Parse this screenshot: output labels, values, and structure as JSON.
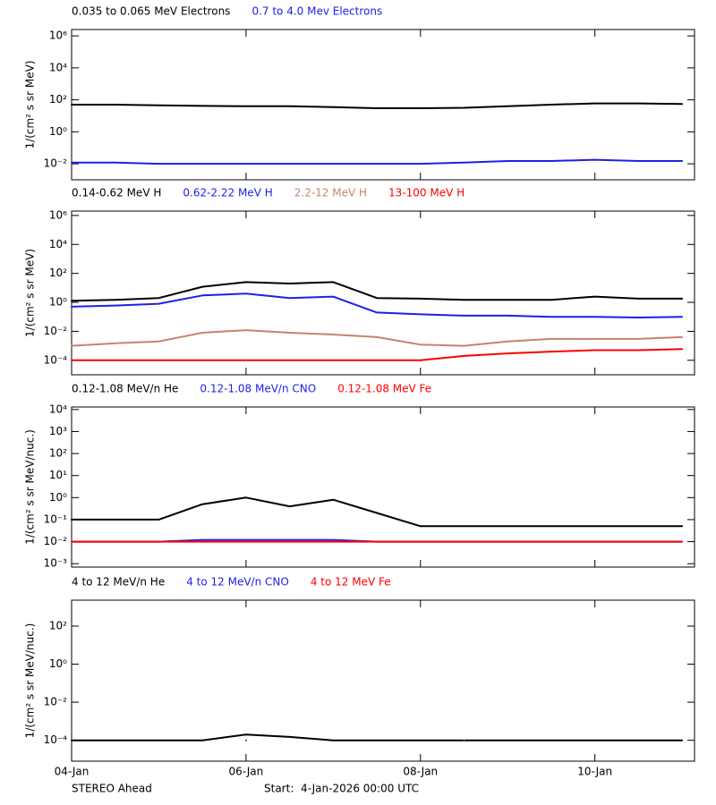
{
  "chart_data": [
    {
      "type": "line",
      "ylog": true,
      "ylabel": "1/(cm² s sr MeV)",
      "x": [
        "2026-01-04T00:00",
        "2026-01-04T12:00",
        "2026-01-05T00:00",
        "2026-01-05T12:00",
        "2026-01-06T00:00",
        "2026-01-06T12:00",
        "2026-01-07T00:00",
        "2026-01-07T12:00",
        "2026-01-08T00:00",
        "2026-01-08T12:00",
        "2026-01-09T00:00",
        "2026-01-09T12:00",
        "2026-01-10T00:00",
        "2026-01-10T12:00",
        "2026-01-11T00:00"
      ],
      "xlim": [
        "2026-01-04T00:00",
        "2026-01-11T03:25"
      ],
      "xticks": [
        "2026-01-04T00:00",
        "2026-01-06T00:00",
        "2026-01-08T00:00",
        "2026-01-10T00:00"
      ],
      "ylim": [
        0.001,
        2500000
      ],
      "yticks": [
        {
          "value": 0.01,
          "label": "10⁻²"
        },
        {
          "value": 1,
          "label": "10⁰"
        },
        {
          "value": 100,
          "label": "10²"
        },
        {
          "value": 10000,
          "label": "10⁴"
        },
        {
          "value": 1000000,
          "label": "10⁶"
        }
      ],
      "series": [
        {
          "name": "0.035 to 0.065 MeV Electrons",
          "color": "#000000",
          "values": [
            50,
            50,
            45,
            42,
            40,
            40,
            35,
            30,
            30,
            32,
            40,
            50,
            60,
            60,
            55
          ]
        },
        {
          "name": "0.7 to 4.0 Mev Electrons",
          "color": "#1f1fe6",
          "values": [
            0.012,
            0.012,
            0.01,
            0.01,
            0.01,
            0.01,
            0.01,
            0.01,
            0.01,
            0.012,
            0.015,
            0.015,
            0.018,
            0.015,
            0.015
          ]
        }
      ]
    },
    {
      "type": "line",
      "ylog": true,
      "ylabel": "1/(cm² s sr MeV)",
      "x": [
        "2026-01-04T00:00",
        "2026-01-04T12:00",
        "2026-01-05T00:00",
        "2026-01-05T12:00",
        "2026-01-06T00:00",
        "2026-01-06T12:00",
        "2026-01-07T00:00",
        "2026-01-07T12:00",
        "2026-01-08T00:00",
        "2026-01-08T12:00",
        "2026-01-09T00:00",
        "2026-01-09T12:00",
        "2026-01-10T00:00",
        "2026-01-10T12:00",
        "2026-01-11T00:00"
      ],
      "xlim": [
        "2026-01-04T00:00",
        "2026-01-11T03:25"
      ],
      "xticks": [
        "2026-01-04T00:00",
        "2026-01-06T00:00",
        "2026-01-08T00:00",
        "2026-01-10T00:00"
      ],
      "ylim": [
        1e-05,
        2000000
      ],
      "yticks": [
        {
          "value": 0.0001,
          "label": "10⁻⁴"
        },
        {
          "value": 0.01,
          "label": "10⁻²"
        },
        {
          "value": 1,
          "label": "10⁰"
        },
        {
          "value": 100,
          "label": "10²"
        },
        {
          "value": 10000,
          "label": "10⁴"
        },
        {
          "value": 1000000,
          "label": "10⁶"
        }
      ],
      "series": [
        {
          "name": "0.14-0.62 MeV H",
          "color": "#000000",
          "values": [
            1.3,
            1.5,
            2,
            12,
            25,
            20,
            25,
            2,
            1.8,
            1.5,
            1.5,
            1.5,
            2.5,
            1.8,
            1.8
          ]
        },
        {
          "name": "0.62-2.22 MeV H",
          "color": "#1f1fe6",
          "values": [
            0.5,
            0.6,
            0.8,
            3,
            4,
            2,
            2.5,
            0.2,
            0.15,
            0.12,
            0.12,
            0.1,
            0.1,
            0.09,
            0.1
          ]
        },
        {
          "name": "2.2-12 MeV H",
          "color": "#c48470",
          "values": [
            0.001,
            0.0015,
            0.002,
            0.008,
            0.012,
            0.008,
            0.006,
            0.004,
            0.0012,
            0.001,
            0.002,
            0.003,
            0.003,
            0.003,
            0.004
          ]
        },
        {
          "name": "13-100 MeV H",
          "color": "#ff0000",
          "values": [
            0.0001,
            0.0001,
            0.0001,
            0.0001,
            0.0001,
            0.0001,
            0.0001,
            0.0001,
            0.0001,
            0.0002,
            0.0003,
            0.0004,
            0.0005,
            0.0005,
            0.0006
          ]
        }
      ]
    },
    {
      "type": "line",
      "ylog": true,
      "ylabel": "1/(cm² s sr MeV/nuc.)",
      "x": [
        "2026-01-04T00:00",
        "2026-01-04T12:00",
        "2026-01-05T00:00",
        "2026-01-05T12:00",
        "2026-01-06T00:00",
        "2026-01-06T12:00",
        "2026-01-07T00:00",
        "2026-01-07T12:00",
        "2026-01-08T00:00",
        "2026-01-08T12:00",
        "2026-01-09T00:00",
        "2026-01-09T12:00",
        "2026-01-10T00:00",
        "2026-01-10T12:00",
        "2026-01-11T00:00"
      ],
      "xlim": [
        "2026-01-04T00:00",
        "2026-01-11T03:25"
      ],
      "xticks": [
        "2026-01-04T00:00",
        "2026-01-06T00:00",
        "2026-01-08T00:00",
        "2026-01-10T00:00"
      ],
      "ylim": [
        0.0007,
        13000
      ],
      "yticks": [
        {
          "value": 0.001,
          "label": "10⁻³"
        },
        {
          "value": 0.01,
          "label": "10⁻²"
        },
        {
          "value": 0.1,
          "label": "10⁻¹"
        },
        {
          "value": 1,
          "label": "10⁰"
        },
        {
          "value": 10,
          "label": "10¹"
        },
        {
          "value": 100,
          "label": "10²"
        },
        {
          "value": 1000,
          "label": "10³"
        },
        {
          "value": 10000,
          "label": "10⁴"
        }
      ],
      "series": [
        {
          "name": "0.12-1.08 MeV/n He",
          "color": "#000000",
          "values": [
            0.1,
            0.1,
            0.1,
            0.5,
            1,
            0.4,
            0.8,
            0.2,
            0.05,
            0.05,
            0.05,
            0.05,
            0.05,
            0.05,
            0.05
          ]
        },
        {
          "name": "0.12-1.08 MeV/n CNO",
          "color": "#1f1fe6",
          "values": [
            0.01,
            0.01,
            0.01,
            0.012,
            0.012,
            0.012,
            0.012,
            0.01,
            0.01,
            0.01,
            0.01,
            0.01,
            0.01,
            0.01,
            0.01
          ]
        },
        {
          "name": "0.12-1.08 MeV Fe",
          "color": "#ff0000",
          "values": [
            0.01,
            0.01,
            0.01,
            0.01,
            0.01,
            0.01,
            0.01,
            0.01,
            0.01,
            0.01,
            0.01,
            0.01,
            0.01,
            0.01,
            0.01
          ]
        }
      ]
    },
    {
      "type": "line",
      "ylog": true,
      "ylabel": "1/(cm² s sr MeV/nuc.)",
      "x": [
        "2026-01-04T00:00",
        "2026-01-04T12:00",
        "2026-01-05T00:00",
        "2026-01-05T12:00",
        "2026-01-06T00:00",
        "2026-01-06T12:00",
        "2026-01-07T00:00",
        "2026-01-07T12:00",
        "2026-01-08T00:00",
        "2026-01-08T12:00",
        "2026-01-09T00:00",
        "2026-01-09T12:00",
        "2026-01-10T00:00",
        "2026-01-10T12:00",
        "2026-01-11T00:00"
      ],
      "xlim": [
        "2026-01-04T00:00",
        "2026-01-11T03:25"
      ],
      "xticks": [
        {
          "value": "2026-01-04T00:00",
          "label": "04-Jan"
        },
        {
          "value": "2026-01-06T00:00",
          "label": "06-Jan"
        },
        {
          "value": "2026-01-08T00:00",
          "label": "08-Jan"
        },
        {
          "value": "2026-01-10T00:00",
          "label": "10-Jan"
        }
      ],
      "ylim": [
        8e-06,
        2300
      ],
      "yticks": [
        {
          "value": 0.0001,
          "label": "10⁻⁴"
        },
        {
          "value": 0.01,
          "label": "10⁻²"
        },
        {
          "value": 1,
          "label": "10⁰"
        },
        {
          "value": 100,
          "label": "10²"
        }
      ],
      "series": [
        {
          "name": "4 to 12 MeV/n He",
          "color": "#000000",
          "values": [
            0.0001,
            0.0001,
            0.0001,
            0.0001,
            0.0002,
            0.00015,
            0.0001,
            0.0001,
            0.0001,
            0.0001,
            0.0001,
            0.0001,
            0.0001,
            0.0001,
            0.0001
          ]
        },
        {
          "name": "4 to 12 MeV/n CNO",
          "color": "#1f1fe6",
          "values": [
            null,
            null,
            null,
            null,
            0.0001,
            null,
            null,
            null,
            null,
            null,
            null,
            null,
            null,
            null,
            null
          ]
        },
        {
          "name": "4 to 12 MeV Fe",
          "color": "#ff0000",
          "values": [
            null,
            null,
            null,
            null,
            null,
            null,
            null,
            null,
            null,
            0.0001,
            null,
            null,
            null,
            null,
            null
          ]
        }
      ]
    }
  ],
  "footer": {
    "left": "STEREO Ahead",
    "right": "Start:  4-Jan-2026 00:00 UTC"
  }
}
